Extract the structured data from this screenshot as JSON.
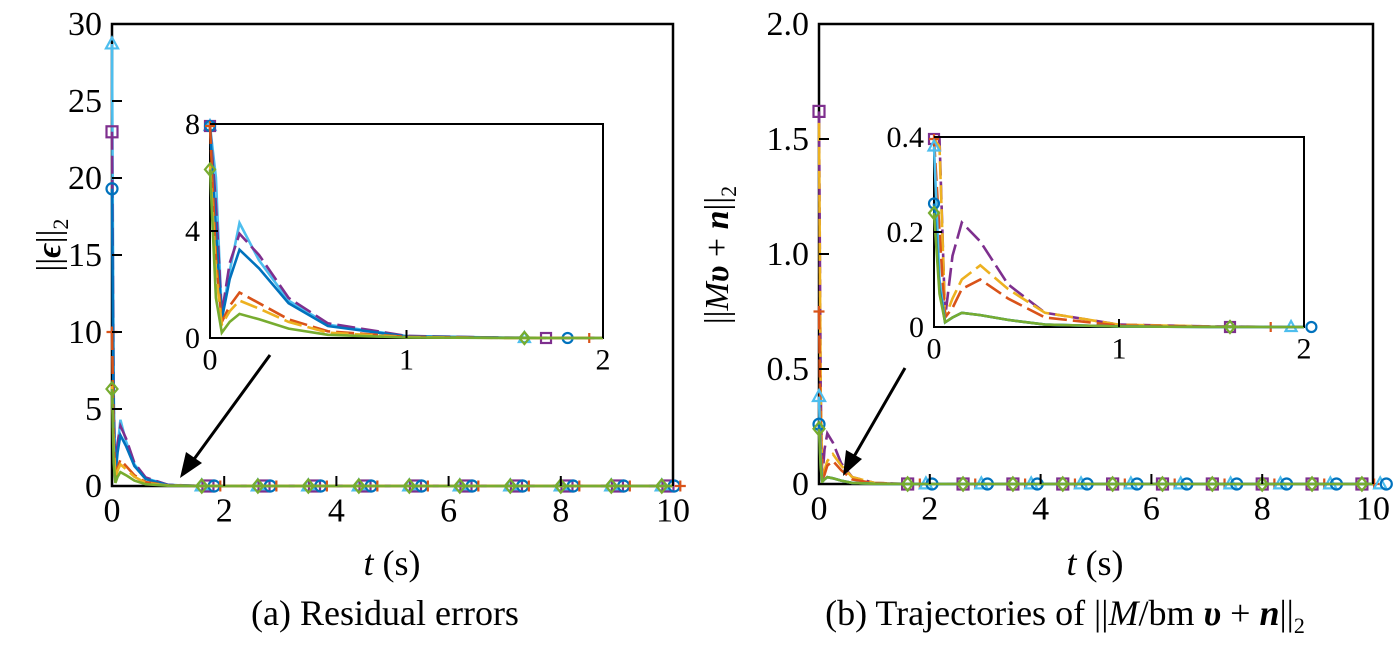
{
  "colors": {
    "blue": "#0072BD",
    "orange": "#D95319",
    "yellow": "#EDB120",
    "purple": "#7E2F8E",
    "green": "#77AC30",
    "cyan": "#4DBEEE"
  },
  "icons": {
    "arrow": "arrow-icon",
    "markers": [
      "circle-marker",
      "square-marker",
      "triangle-marker",
      "diamond-marker",
      "plus-marker"
    ]
  },
  "panels": [
    {
      "caption": "(a) Residual errors",
      "ylabel_prefix": "||",
      "ylabel_var": "ϵ",
      "ylabel_suffix": "||",
      "ylabel_sub": "2",
      "xlabel_var": "t",
      "xlabel_unit": " (s)",
      "xticks": [
        "0",
        "2",
        "4",
        "6",
        "8",
        "10"
      ],
      "yticks": [
        "0",
        "5",
        "10",
        "15",
        "20",
        "25",
        "30"
      ],
      "inset_xticks": [
        "0",
        "1",
        "2"
      ],
      "inset_yticks": [
        "0",
        "4",
        "8"
      ]
    },
    {
      "caption_parts": [
        "(b) Trajectories of ||",
        "M",
        "/bm ",
        "υ",
        " + ",
        "n",
        "||",
        "2"
      ],
      "ylabel_parts": [
        "||",
        "M",
        "υ",
        " + ",
        "n",
        "||",
        "2"
      ],
      "xlabel_var": "t",
      "xlabel_unit": " (s)",
      "xticks": [
        "0",
        "2",
        "4",
        "6",
        "8",
        "10"
      ],
      "yticks": [
        "0",
        "0.5",
        "1.0",
        "1.5",
        "2.0"
      ],
      "inset_xticks": [
        "0",
        "1",
        "2"
      ],
      "inset_yticks": [
        "0",
        "0.2",
        "0.4"
      ]
    }
  ],
  "chart_data": [
    {
      "type": "line",
      "title": "(a) Residual errors",
      "xlabel": "t (s)",
      "ylabel": "||ϵ||2",
      "xlim": [
        0,
        10
      ],
      "ylim": [
        0,
        30
      ],
      "series": [
        {
          "color": "cyan",
          "marker": "triangle",
          "x": [
            0,
            0.03,
            0.06,
            0.1,
            0.15,
            0.25,
            0.4,
            0.6,
            1,
            1.5,
            10
          ],
          "y": [
            28.7,
            6,
            0.8,
            2.5,
            4.3,
            2.9,
            1.4,
            0.5,
            0.07,
            0.01,
            0
          ]
        },
        {
          "color": "purple",
          "marker": "square",
          "x": [
            0,
            0.03,
            0.06,
            0.1,
            0.15,
            0.25,
            0.4,
            0.6,
            1,
            1.5,
            10
          ],
          "y": [
            23,
            5,
            0.9,
            2.8,
            3.9,
            3.1,
            1.5,
            0.55,
            0.08,
            0.01,
            0
          ]
        },
        {
          "color": "blue",
          "marker": "circle",
          "x": [
            0,
            0.03,
            0.06,
            0.1,
            0.15,
            0.25,
            0.4,
            0.6,
            1,
            1.5,
            10
          ],
          "y": [
            19.3,
            4,
            0.7,
            2.2,
            3.3,
            2.6,
            1.3,
            0.45,
            0.06,
            0.01,
            0
          ]
        },
        {
          "color": "orange",
          "marker": "plus",
          "x": [
            0,
            0.03,
            0.06,
            0.1,
            0.15,
            0.25,
            0.4,
            0.6,
            1,
            1.5,
            10
          ],
          "y": [
            10,
            3,
            0.6,
            1.2,
            1.7,
            1.3,
            0.7,
            0.25,
            0.04,
            0.005,
            0
          ]
        },
        {
          "color": "yellow",
          "marker": "none",
          "x": [
            0,
            0.03,
            0.06,
            0.1,
            0.15,
            0.25,
            0.4,
            0.6,
            1,
            1.5,
            10
          ],
          "y": [
            6.5,
            2.5,
            0.5,
            1.0,
            1.4,
            1.1,
            0.6,
            0.2,
            0.03,
            0.004,
            0
          ]
        },
        {
          "color": "green",
          "marker": "diamond",
          "x": [
            0,
            0.03,
            0.06,
            0.1,
            0.15,
            0.25,
            0.4,
            0.6,
            1,
            1.5,
            10
          ],
          "y": [
            6.3,
            1.5,
            0.2,
            0.6,
            0.9,
            0.7,
            0.35,
            0.12,
            0.02,
            0.003,
            0
          ]
        }
      ],
      "inset": {
        "xlim": [
          0,
          2
        ],
        "ylim": [
          0,
          8
        ]
      }
    },
    {
      "type": "line",
      "title": "(b) Trajectories of ||M/bm υ + n||2",
      "xlabel": "t (s)",
      "ylabel": "||Mυ + n||2",
      "xlim": [
        0,
        10
      ],
      "ylim": [
        0,
        2.0
      ],
      "series": [
        {
          "color": "purple",
          "marker": "square",
          "x": [
            0,
            0.03,
            0.06,
            0.1,
            0.15,
            0.25,
            0.4,
            0.6,
            1,
            1.5,
            10
          ],
          "y": [
            1.62,
            0.4,
            0.02,
            0.15,
            0.22,
            0.18,
            0.09,
            0.03,
            0.005,
            0.001,
            0
          ]
        },
        {
          "color": "yellow",
          "marker": "none",
          "x": [
            0,
            0.03,
            0.06,
            0.1,
            0.15,
            0.25,
            0.4,
            0.6,
            1,
            1.5,
            10
          ],
          "y": [
            1.57,
            0.38,
            0.02,
            0.06,
            0.1,
            0.13,
            0.08,
            0.03,
            0.005,
            0.001,
            0
          ]
        },
        {
          "color": "orange",
          "marker": "plus",
          "x": [
            0,
            0.03,
            0.06,
            0.1,
            0.15,
            0.25,
            0.4,
            0.6,
            1,
            1.5,
            10
          ],
          "y": [
            0.75,
            0.2,
            0.02,
            0.04,
            0.08,
            0.1,
            0.06,
            0.02,
            0.003,
            0.001,
            0
          ]
        },
        {
          "color": "cyan",
          "marker": "triangle",
          "x": [
            0,
            0.03,
            0.06,
            0.1,
            0.15,
            0.25,
            0.4,
            0.6,
            1,
            1.5,
            10
          ],
          "y": [
            0.38,
            0.1,
            0.01,
            0.02,
            0.03,
            0.025,
            0.015,
            0.005,
            0.001,
            0,
            0
          ]
        },
        {
          "color": "blue",
          "marker": "circle",
          "x": [
            0,
            0.03,
            0.06,
            0.1,
            0.15,
            0.25,
            0.4,
            0.6,
            1,
            1.5,
            10
          ],
          "y": [
            0.26,
            0.08,
            0.01,
            0.02,
            0.03,
            0.025,
            0.015,
            0.005,
            0.001,
            0,
            0
          ]
        },
        {
          "color": "green",
          "marker": "diamond",
          "x": [
            0,
            0.03,
            0.06,
            0.1,
            0.15,
            0.25,
            0.4,
            0.6,
            1,
            1.5,
            10
          ],
          "y": [
            0.24,
            0.07,
            0.01,
            0.02,
            0.03,
            0.025,
            0.015,
            0.005,
            0.001,
            0,
            0
          ]
        }
      ],
      "inset": {
        "xlim": [
          0,
          2
        ],
        "ylim": [
          0,
          0.4
        ]
      }
    }
  ]
}
